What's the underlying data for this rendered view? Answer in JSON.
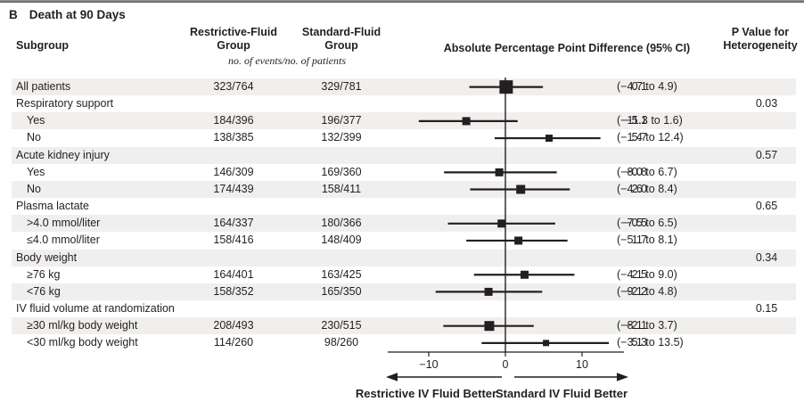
{
  "header": {
    "panel_label": "B",
    "title": "Death at 90 Days",
    "col_subgroup": "Subgroup",
    "col_restrictive_line1": "Restrictive-Fluid",
    "col_restrictive_line2": "Group",
    "col_standard_line1": "Standard-Fluid",
    "col_standard_line2": "Group",
    "events_note": "no. of events/no. of patients",
    "col_difference": "Absolute Percentage Point Difference (95% CI)",
    "col_pvalue_line1": "P Value for",
    "col_pvalue_line2": "Heterogeneity"
  },
  "axis": {
    "tick_labels": [
      "−10",
      "0",
      "10"
    ],
    "tick_values": [
      -10,
      0,
      10
    ],
    "left_label": "Restrictive IV Fluid Better",
    "right_label": "Standard IV Fluid Better"
  },
  "colors": {
    "stripe": "#f0efed",
    "ink": "#231f20",
    "top_border": "#58595b"
  },
  "chart_data": {
    "type": "forest",
    "panel": "B",
    "title": "Death at 90 Days",
    "xlabel": "Absolute Percentage Point Difference (95% CI)",
    "xlim": [
      -15.5,
      15.5
    ],
    "x_ticks": [
      -10,
      0,
      10
    ],
    "legend_position": "none",
    "grid": false,
    "rows": [
      {
        "kind": "data",
        "indent": 0,
        "label": "All patients",
        "restrictive": "323/764",
        "standard": "329/781",
        "estimate": 0.1,
        "ci_low": -4.7,
        "ci_high": 4.9,
        "estimate_text": "0.1",
        "ci_text": "(−4.7 to 4.9)",
        "marker_size": 15
      },
      {
        "kind": "category",
        "label": "Respiratory support",
        "p_value": "0.03"
      },
      {
        "kind": "data",
        "indent": 1,
        "label": "Yes",
        "restrictive": "184/396",
        "standard": "196/377",
        "estimate": -5.1,
        "ci_low": -11.3,
        "ci_high": 1.6,
        "estimate_text": "−5.1",
        "ci_text": "(−11.3 to 1.6)",
        "marker_size": 9
      },
      {
        "kind": "data",
        "indent": 1,
        "label": "No",
        "restrictive": "138/385",
        "standard": "132/399",
        "estimate": 5.7,
        "ci_low": -1.4,
        "ci_high": 12.4,
        "estimate_text": "5.7",
        "ci_text": "(−1.4 to 12.4)",
        "marker_size": 8
      },
      {
        "kind": "category",
        "label": "Acute kidney injury",
        "p_value": "0.57"
      },
      {
        "kind": "data",
        "indent": 1,
        "label": "Yes",
        "restrictive": "146/309",
        "standard": "169/360",
        "estimate": -0.8,
        "ci_low": -8.0,
        "ci_high": 6.7,
        "estimate_text": "−0.8",
        "ci_text": "(−8.0 to 6.7)",
        "marker_size": 9
      },
      {
        "kind": "data",
        "indent": 1,
        "label": "No",
        "restrictive": "174/439",
        "standard": "158/411",
        "estimate": 2.0,
        "ci_low": -4.6,
        "ci_high": 8.4,
        "estimate_text": "2.0",
        "ci_text": "(−4.6 to 8.4)",
        "marker_size": 10
      },
      {
        "kind": "category",
        "label": "Plasma lactate",
        "p_value": "0.65"
      },
      {
        "kind": "data",
        "indent": 1,
        "label": ">4.0 mmol/liter",
        "restrictive": "164/337",
        "standard": "180/366",
        "estimate": -0.5,
        "ci_low": -7.5,
        "ci_high": 6.5,
        "estimate_text": "−0.5",
        "ci_text": "(−7.5 to 6.5)",
        "marker_size": 9
      },
      {
        "kind": "data",
        "indent": 1,
        "label": "≤4.0 mmol/liter",
        "restrictive": "158/416",
        "standard": "148/409",
        "estimate": 1.7,
        "ci_low": -5.1,
        "ci_high": 8.1,
        "estimate_text": "1.7",
        "ci_text": "(−5.1 to 8.1)",
        "marker_size": 9
      },
      {
        "kind": "category",
        "label": "Body weight",
        "p_value": "0.34"
      },
      {
        "kind": "data",
        "indent": 1,
        "label": "≥76 kg",
        "restrictive": "164/401",
        "standard": "163/425",
        "estimate": 2.5,
        "ci_low": -4.1,
        "ci_high": 9.0,
        "estimate_text": "2.5",
        "ci_text": "(−4.1 to 9.0)",
        "marker_size": 9
      },
      {
        "kind": "data",
        "indent": 1,
        "label": "<76 kg",
        "restrictive": "158/352",
        "standard": "165/350",
        "estimate": -2.2,
        "ci_low": -9.1,
        "ci_high": 4.8,
        "estimate_text": "−2.2",
        "ci_text": "(−9.1 to 4.8)",
        "marker_size": 9
      },
      {
        "kind": "category",
        "label": "IV fluid volume at randomization",
        "p_value": "0.15"
      },
      {
        "kind": "data",
        "indent": 1,
        "label": "≥30 ml/kg body weight",
        "restrictive": "208/493",
        "standard": "230/515",
        "estimate": -2.1,
        "ci_low": -8.1,
        "ci_high": 3.7,
        "estimate_text": "−2.1",
        "ci_text": "(−8.1 to 3.7)",
        "marker_size": 11
      },
      {
        "kind": "data",
        "indent": 1,
        "label": "<30 ml/kg body weight",
        "restrictive": "114/260",
        "standard": "98/260",
        "estimate": 5.3,
        "ci_low": -3.1,
        "ci_high": 13.5,
        "estimate_text": "5.3",
        "ci_text": "(−3.1 to 13.5)",
        "marker_size": 7
      }
    ],
    "direction_labels": {
      "left": "Restrictive IV Fluid Better",
      "right": "Standard IV Fluid Better"
    }
  }
}
